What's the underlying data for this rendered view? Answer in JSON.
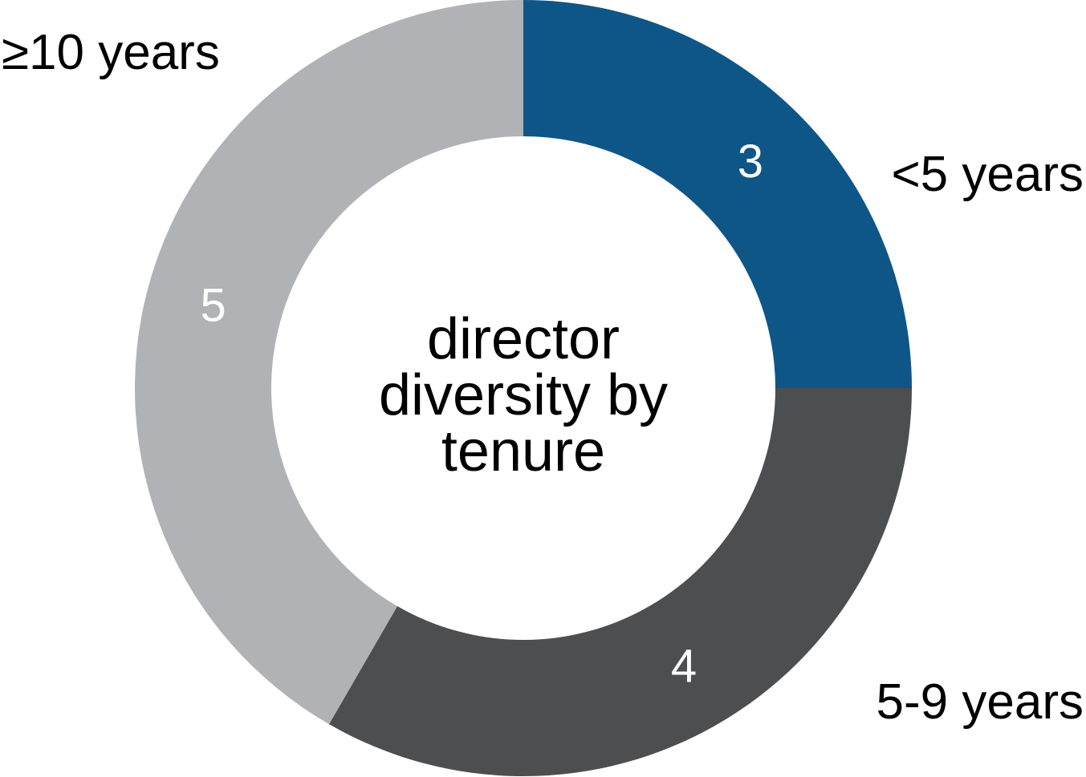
{
  "chart_data": {
    "type": "donut",
    "title": "director diversity by tenure",
    "categories": [
      "<5 years",
      "5-9 years",
      "≥10 years"
    ],
    "values": [
      3,
      4,
      5
    ],
    "colors": [
      "#0f5688",
      "#4d4e50",
      "#b1b2b5"
    ]
  }
}
